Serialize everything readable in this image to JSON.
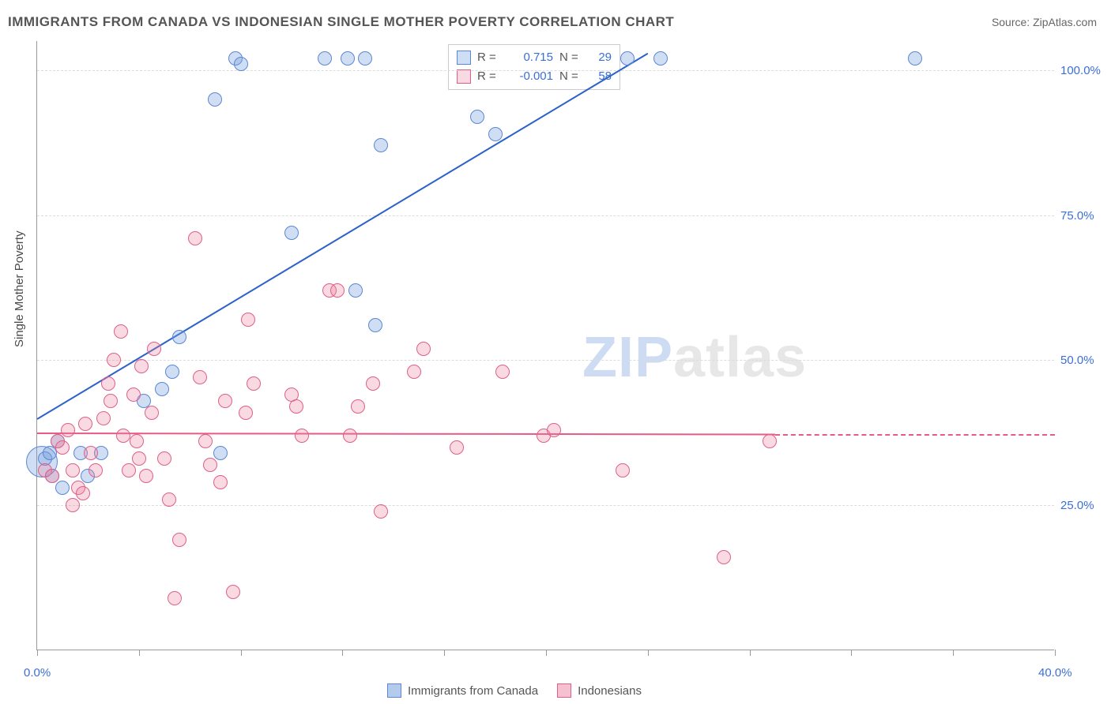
{
  "title": "IMMIGRANTS FROM CANADA VS INDONESIAN SINGLE MOTHER POVERTY CORRELATION CHART",
  "source": "Source: ZipAtlas.com",
  "y_axis_title": "Single Mother Poverty",
  "watermark_a": "ZIP",
  "watermark_b": "atlas",
  "chart": {
    "type": "scatter",
    "background_color": "#ffffff",
    "grid_color": "#dcdcdc",
    "axis_color": "#999999",
    "label_color": "#3b6fd8",
    "xlim": [
      0,
      40
    ],
    "ylim": [
      0,
      105
    ],
    "y_ticks": [
      25,
      50,
      75,
      100
    ],
    "y_tick_labels": [
      "25.0%",
      "50.0%",
      "75.0%",
      "100.0%"
    ],
    "x_ticks": [
      0,
      4,
      8,
      12,
      16,
      20,
      24,
      28,
      32,
      36,
      40
    ],
    "x_tick_labels": [
      "0.0%",
      "40.0%"
    ],
    "point_radius": 9,
    "point_stroke_width": 1,
    "series": [
      {
        "name": "Immigrants from Canada",
        "fill": "rgba(120,160,220,0.35)",
        "stroke": "#5a87d7",
        "r_label": "R =",
        "r_value": "0.715",
        "n_label": "N =",
        "n_value": "29",
        "trend": {
          "x1": 0,
          "y1": 40,
          "x2": 24,
          "y2": 103,
          "color": "#2c62c9",
          "width": 2
        },
        "points": [
          [
            0.2,
            32.5,
            20
          ],
          [
            0.3,
            33,
            9
          ],
          [
            0.5,
            34,
            9
          ],
          [
            0.6,
            30,
            9
          ],
          [
            1.0,
            28,
            9
          ],
          [
            1.7,
            34,
            9
          ],
          [
            0.8,
            36,
            9
          ],
          [
            2.0,
            30,
            9
          ],
          [
            2.5,
            34,
            9
          ],
          [
            4.2,
            43,
            9
          ],
          [
            4.9,
            45,
            9
          ],
          [
            5.6,
            54,
            9
          ],
          [
            5.3,
            48,
            9
          ],
          [
            7.2,
            34,
            9
          ],
          [
            7.8,
            102,
            9
          ],
          [
            10.0,
            72,
            9
          ],
          [
            8.0,
            101,
            9
          ],
          [
            7.0,
            95,
            9
          ],
          [
            11.3,
            102,
            9
          ],
          [
            12.2,
            102,
            9
          ],
          [
            12.9,
            102,
            9
          ],
          [
            13.5,
            87,
            9
          ],
          [
            12.5,
            62,
            9
          ],
          [
            13.3,
            56,
            9
          ],
          [
            18.0,
            89,
            9
          ],
          [
            17.3,
            92,
            9
          ],
          [
            23.2,
            102,
            9
          ],
          [
            24.5,
            102,
            9
          ],
          [
            34.5,
            102,
            9
          ]
        ]
      },
      {
        "name": "Indonesians",
        "fill": "rgba(235,130,160,0.30)",
        "stroke": "#df5f88",
        "r_label": "R =",
        "r_value": "-0.001",
        "n_label": "N =",
        "n_value": "58",
        "trend": {
          "x1": 0,
          "y1": 37.5,
          "x2": 29,
          "y2": 37.3,
          "color": "#e85b85",
          "width": 2,
          "dash_to_x": 40
        },
        "points": [
          [
            0.3,
            31,
            9
          ],
          [
            0.6,
            30,
            9
          ],
          [
            0.8,
            36,
            9
          ],
          [
            1.0,
            35,
            9
          ],
          [
            1.2,
            38,
            9
          ],
          [
            1.4,
            31,
            9
          ],
          [
            1.6,
            28,
            9
          ],
          [
            1.4,
            25,
            9
          ],
          [
            1.9,
            39,
            9
          ],
          [
            2.1,
            34,
            9
          ],
          [
            2.3,
            31,
            9
          ],
          [
            2.6,
            40,
            9
          ],
          [
            2.8,
            46,
            9
          ],
          [
            3.0,
            50,
            9
          ],
          [
            2.9,
            43,
            9
          ],
          [
            1.8,
            27,
            9
          ],
          [
            3.4,
            37,
            9
          ],
          [
            3.6,
            31,
            9
          ],
          [
            3.8,
            44,
            9
          ],
          [
            4.0,
            33,
            9
          ],
          [
            4.3,
            30,
            9
          ],
          [
            4.6,
            52,
            9
          ],
          [
            4.5,
            41,
            9
          ],
          [
            3.9,
            36,
            9
          ],
          [
            5.0,
            33,
            9
          ],
          [
            5.2,
            26,
            9
          ],
          [
            5.4,
            9,
            9
          ],
          [
            5.6,
            19,
            9
          ],
          [
            6.2,
            71,
            9
          ],
          [
            6.4,
            47,
            9
          ],
          [
            6.6,
            36,
            9
          ],
          [
            6.8,
            32,
            9
          ],
          [
            7.2,
            29,
            9
          ],
          [
            7.4,
            43,
            9
          ],
          [
            7.7,
            10,
            9
          ],
          [
            8.3,
            57,
            9
          ],
          [
            8.2,
            41,
            9
          ],
          [
            8.5,
            46,
            9
          ],
          [
            10.0,
            44,
            9
          ],
          [
            10.4,
            37,
            9
          ],
          [
            10.2,
            42,
            9
          ],
          [
            11.5,
            62,
            9
          ],
          [
            11.8,
            62,
            9
          ],
          [
            12.3,
            37,
            9
          ],
          [
            12.6,
            42,
            9
          ],
          [
            13.2,
            46,
            9
          ],
          [
            13.5,
            24,
            9
          ],
          [
            15.2,
            52,
            9
          ],
          [
            14.8,
            48,
            9
          ],
          [
            16.5,
            35,
            9
          ],
          [
            18.3,
            48,
            9
          ],
          [
            19.9,
            37,
            9
          ],
          [
            20.3,
            38,
            9
          ],
          [
            23.0,
            31,
            9
          ],
          [
            27.0,
            16,
            9
          ],
          [
            28.8,
            36,
            9
          ],
          [
            3.3,
            55,
            9
          ],
          [
            4.1,
            49,
            9
          ]
        ]
      }
    ]
  },
  "legend_bottom": {
    "items": [
      {
        "label": "Immigrants from Canada",
        "fill": "rgba(120,160,220,0.55)",
        "stroke": "#5a87d7"
      },
      {
        "label": "Indonesians",
        "fill": "rgba(235,130,160,0.50)",
        "stroke": "#df5f88"
      }
    ]
  }
}
